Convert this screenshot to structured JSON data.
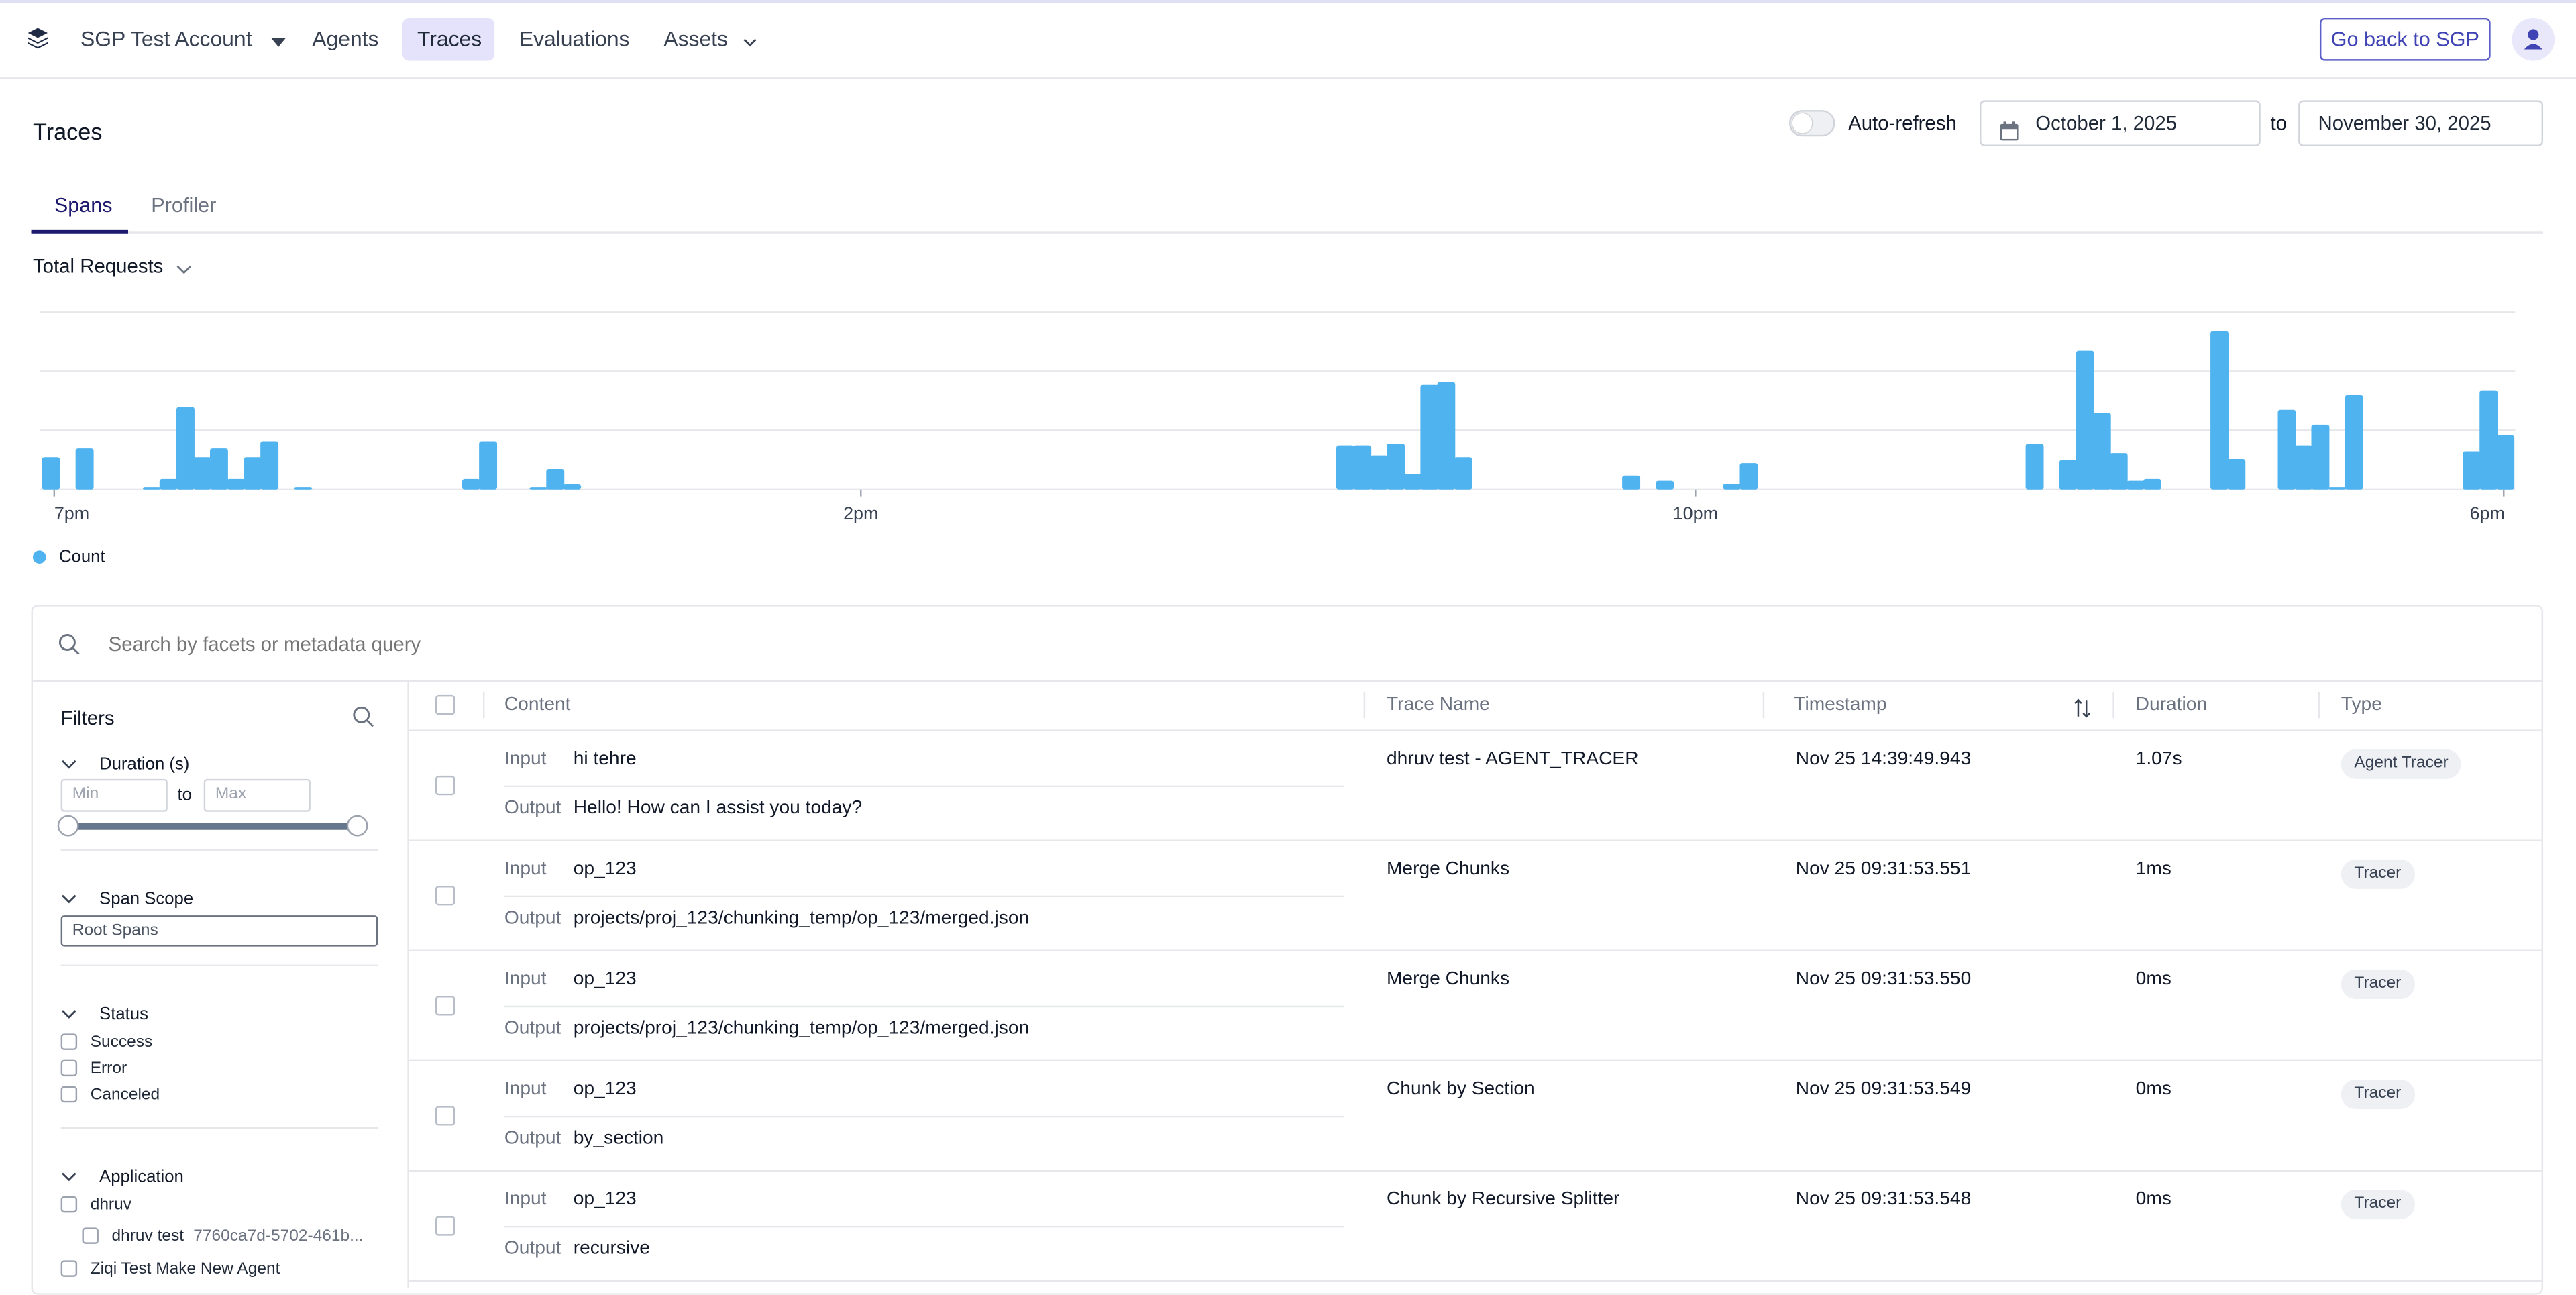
{
  "nav": {
    "account_label": "SGP Test Account",
    "items": [
      {
        "label": "Agents"
      },
      {
        "label": "Traces"
      },
      {
        "label": "Evaluations"
      },
      {
        "label": "Assets"
      }
    ],
    "go_back_label": "Go back to SGP",
    "logo_icon": "layers-icon",
    "avatar_icon": "user-icon"
  },
  "page": {
    "title": "Traces",
    "auto_refresh_label": "Auto-refresh",
    "auto_refresh_on": false,
    "date_from": "October 1, 2025",
    "date_to_label": "to",
    "date_to": "November 30, 2025"
  },
  "tabs": [
    {
      "label": "Spans",
      "active": true
    },
    {
      "label": "Profiler",
      "active": false
    }
  ],
  "metric_selector": {
    "label": "Total Requests"
  },
  "chart_data": {
    "type": "bar",
    "x_ticks": [
      "7pm",
      "2pm",
      "10pm",
      "6pm"
    ],
    "legend": [
      {
        "name": "Count",
        "color": "#4fb3ef"
      }
    ],
    "grid": true,
    "ylim": [
      0,
      3
    ],
    "values": [
      0.55,
      0,
      0.7,
      0,
      0,
      0,
      0.03,
      0.18,
      1.4,
      0.55,
      0.7,
      0.18,
      0.55,
      0.82,
      0,
      0.03,
      0,
      0,
      0,
      0,
      0,
      0,
      0,
      0,
      0,
      0.18,
      0.82,
      0,
      0,
      0.03,
      0.35,
      0.09,
      0,
      0,
      0,
      0,
      0,
      0,
      0,
      0,
      0,
      0,
      0,
      0,
      0,
      0,
      0,
      0,
      0,
      0,
      0,
      0,
      0,
      0,
      0,
      0,
      0,
      0,
      0,
      0,
      0,
      0,
      0,
      0,
      0,
      0,
      0,
      0,
      0,
      0,
      0,
      0,
      0,
      0,
      0,
      0,
      0,
      0.75,
      0.75,
      0.58,
      0.78,
      0.27,
      1.77,
      1.82,
      0.55,
      0,
      0,
      0,
      0,
      0,
      0,
      0,
      0,
      0,
      0.24,
      0,
      0.15,
      0,
      0,
      0,
      0.1,
      0.45,
      0,
      0,
      0,
      0,
      0,
      0,
      0,
      0,
      0,
      0,
      0,
      0,
      0,
      0,
      0,
      0,
      0.78,
      0,
      0.5,
      2.35,
      1.3,
      0.62,
      0.15,
      0.18,
      0,
      0,
      0,
      2.68,
      0.52,
      0,
      0,
      1.35,
      0.75,
      1.1,
      0.03,
      1.6,
      0,
      0,
      0,
      0,
      0,
      0,
      0.65,
      1.68,
      0.92
    ],
    "color": "#4fb3ef"
  },
  "search": {
    "placeholder": "Search by facets or metadata query"
  },
  "filters": {
    "title": "Filters",
    "duration": {
      "label": "Duration (s)",
      "min_placeholder": "Min",
      "to": "to",
      "max_placeholder": "Max",
      "range": [
        0,
        1
      ]
    },
    "span_scope": {
      "label": "Span Scope",
      "value": "Root Spans"
    },
    "status": {
      "label": "Status",
      "options": [
        "Success",
        "Error",
        "Canceled"
      ]
    },
    "application": {
      "label": "Application",
      "options": [
        {
          "label": "dhruv"
        },
        {
          "label": "dhruv test",
          "id": "7760ca7d-5702-461b..."
        },
        {
          "label": "Ziqi Test Make New Agent"
        }
      ]
    }
  },
  "table": {
    "columns": [
      "Content",
      "Trace Name",
      "Timestamp",
      "Duration",
      "Type"
    ],
    "input_label": "Input",
    "output_label": "Output",
    "rows": [
      {
        "input": "hi tehre",
        "output": "Hello! How can I assist you today?",
        "trace_name": "dhruv test - AGENT_TRACER",
        "timestamp": "Nov 25 14:39:49.943",
        "duration": "1.07s",
        "type": "Agent Tracer"
      },
      {
        "input": "op_123",
        "output": "projects/proj_123/chunking_temp/op_123/merged.json",
        "trace_name": "Merge Chunks",
        "timestamp": "Nov 25 09:31:53.551",
        "duration": "1ms",
        "type": "Tracer"
      },
      {
        "input": "op_123",
        "output": "projects/proj_123/chunking_temp/op_123/merged.json",
        "trace_name": "Merge Chunks",
        "timestamp": "Nov 25 09:31:53.550",
        "duration": "0ms",
        "type": "Tracer"
      },
      {
        "input": "op_123",
        "output": "by_section",
        "trace_name": "Chunk by Section",
        "timestamp": "Nov 25 09:31:53.549",
        "duration": "0ms",
        "type": "Tracer"
      },
      {
        "input": "op_123",
        "output": "recursive",
        "trace_name": "Chunk by Recursive Splitter",
        "timestamp": "Nov 25 09:31:53.548",
        "duration": "0ms",
        "type": "Tracer"
      }
    ]
  },
  "colors": {
    "accent": "#3f43b3",
    "active_tab_bg": "#e4e3fb",
    "bar": "#4fb3ef"
  }
}
